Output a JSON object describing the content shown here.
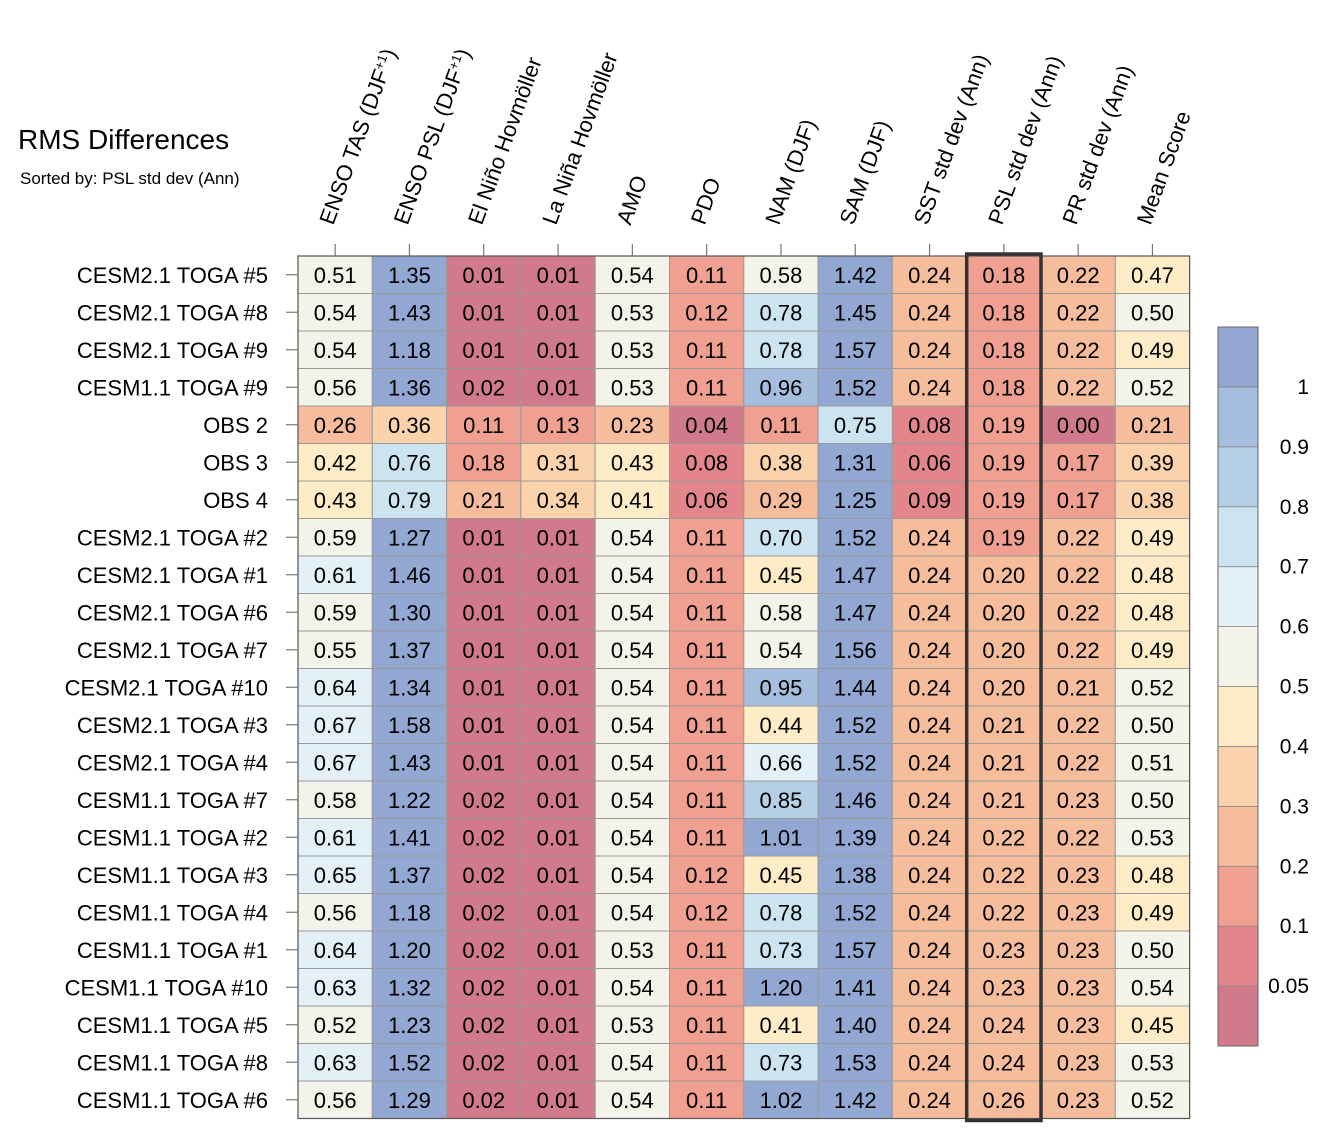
{
  "header": {
    "title": "RMS Differences",
    "subtitle": "Sorted by: PSL std dev (Ann)"
  },
  "chart_data": {
    "type": "heatmap",
    "title": "RMS Differences",
    "subtitle": "Sorted by: PSL std dev (Ann)",
    "sorted_by": "PSL std dev (Ann)",
    "highlighted_column": "PSL std dev (Ann)",
    "columns": [
      {
        "pre": "ENSO TAS (DJF",
        "sup": "+1",
        "post": ")"
      },
      {
        "pre": "ENSO PSL (DJF",
        "sup": "+1",
        "post": ")"
      },
      {
        "pre": "El Niño Hovmöller",
        "sup": "",
        "post": ""
      },
      {
        "pre": "La Niña Hovmöller",
        "sup": "",
        "post": ""
      },
      {
        "pre": "AMO",
        "sup": "",
        "post": ""
      },
      {
        "pre": "PDO",
        "sup": "",
        "post": ""
      },
      {
        "pre": "NAM (DJF)",
        "sup": "",
        "post": ""
      },
      {
        "pre": "SAM (DJF)",
        "sup": "",
        "post": ""
      },
      {
        "pre": "SST std dev (Ann)",
        "sup": "",
        "post": ""
      },
      {
        "pre": "PSL std dev (Ann)",
        "sup": "",
        "post": ""
      },
      {
        "pre": "PR std dev (Ann)",
        "sup": "",
        "post": ""
      },
      {
        "pre": "Mean Score",
        "sup": "",
        "post": ""
      }
    ],
    "rows": [
      "CESM2.1 TOGA #5",
      "CESM2.1 TOGA #8",
      "CESM2.1 TOGA #9",
      "CESM1.1 TOGA #9",
      "OBS 2",
      "OBS 3",
      "OBS 4",
      "CESM2.1 TOGA #2",
      "CESM2.1 TOGA #1",
      "CESM2.1 TOGA #6",
      "CESM2.1 TOGA #7",
      "CESM2.1 TOGA #10",
      "CESM2.1 TOGA #3",
      "CESM2.1 TOGA #4",
      "CESM1.1 TOGA #7",
      "CESM1.1 TOGA #2",
      "CESM1.1 TOGA #3",
      "CESM1.1 TOGA #4",
      "CESM1.1 TOGA #1",
      "CESM1.1 TOGA #10",
      "CESM1.1 TOGA #5",
      "CESM1.1 TOGA #8",
      "CESM1.1 TOGA #6"
    ],
    "values": [
      [
        "0.51",
        "1.35",
        "0.01",
        "0.01",
        "0.54",
        "0.11",
        "0.58",
        "1.42",
        "0.24",
        "0.18",
        "0.22",
        "0.47"
      ],
      [
        "0.54",
        "1.43",
        "0.01",
        "0.01",
        "0.53",
        "0.12",
        "0.78",
        "1.45",
        "0.24",
        "0.18",
        "0.22",
        "0.50"
      ],
      [
        "0.54",
        "1.18",
        "0.01",
        "0.01",
        "0.53",
        "0.11",
        "0.78",
        "1.57",
        "0.24",
        "0.18",
        "0.22",
        "0.49"
      ],
      [
        "0.56",
        "1.36",
        "0.02",
        "0.01",
        "0.53",
        "0.11",
        "0.96",
        "1.52",
        "0.24",
        "0.18",
        "0.22",
        "0.52"
      ],
      [
        "0.26",
        "0.36",
        "0.11",
        "0.13",
        "0.23",
        "0.04",
        "0.11",
        "0.75",
        "0.08",
        "0.19",
        "0.00",
        "0.21"
      ],
      [
        "0.42",
        "0.76",
        "0.18",
        "0.31",
        "0.43",
        "0.08",
        "0.38",
        "1.31",
        "0.06",
        "0.19",
        "0.17",
        "0.39"
      ],
      [
        "0.43",
        "0.79",
        "0.21",
        "0.34",
        "0.41",
        "0.06",
        "0.29",
        "1.25",
        "0.09",
        "0.19",
        "0.17",
        "0.38"
      ],
      [
        "0.59",
        "1.27",
        "0.01",
        "0.01",
        "0.54",
        "0.11",
        "0.70",
        "1.52",
        "0.24",
        "0.19",
        "0.22",
        "0.49"
      ],
      [
        "0.61",
        "1.46",
        "0.01",
        "0.01",
        "0.54",
        "0.11",
        "0.45",
        "1.47",
        "0.24",
        "0.20",
        "0.22",
        "0.48"
      ],
      [
        "0.59",
        "1.30",
        "0.01",
        "0.01",
        "0.54",
        "0.11",
        "0.58",
        "1.47",
        "0.24",
        "0.20",
        "0.22",
        "0.48"
      ],
      [
        "0.55",
        "1.37",
        "0.01",
        "0.01",
        "0.54",
        "0.11",
        "0.54",
        "1.56",
        "0.24",
        "0.20",
        "0.22",
        "0.49"
      ],
      [
        "0.64",
        "1.34",
        "0.01",
        "0.01",
        "0.54",
        "0.11",
        "0.95",
        "1.44",
        "0.24",
        "0.20",
        "0.21",
        "0.52"
      ],
      [
        "0.67",
        "1.58",
        "0.01",
        "0.01",
        "0.54",
        "0.11",
        "0.44",
        "1.52",
        "0.24",
        "0.21",
        "0.22",
        "0.50"
      ],
      [
        "0.67",
        "1.43",
        "0.01",
        "0.01",
        "0.54",
        "0.11",
        "0.66",
        "1.52",
        "0.24",
        "0.21",
        "0.22",
        "0.51"
      ],
      [
        "0.58",
        "1.22",
        "0.02",
        "0.01",
        "0.54",
        "0.11",
        "0.85",
        "1.46",
        "0.24",
        "0.21",
        "0.23",
        "0.50"
      ],
      [
        "0.61",
        "1.41",
        "0.02",
        "0.01",
        "0.54",
        "0.11",
        "1.01",
        "1.39",
        "0.24",
        "0.22",
        "0.22",
        "0.53"
      ],
      [
        "0.65",
        "1.37",
        "0.02",
        "0.01",
        "0.54",
        "0.12",
        "0.45",
        "1.38",
        "0.24",
        "0.22",
        "0.23",
        "0.48"
      ],
      [
        "0.56",
        "1.18",
        "0.02",
        "0.01",
        "0.54",
        "0.12",
        "0.78",
        "1.52",
        "0.24",
        "0.22",
        "0.23",
        "0.49"
      ],
      [
        "0.64",
        "1.20",
        "0.02",
        "0.01",
        "0.53",
        "0.11",
        "0.73",
        "1.57",
        "0.24",
        "0.23",
        "0.23",
        "0.50"
      ],
      [
        "0.63",
        "1.32",
        "0.02",
        "0.01",
        "0.54",
        "0.11",
        "1.20",
        "1.41",
        "0.24",
        "0.23",
        "0.23",
        "0.54"
      ],
      [
        "0.52",
        "1.23",
        "0.02",
        "0.01",
        "0.53",
        "0.11",
        "0.41",
        "1.40",
        "0.24",
        "0.24",
        "0.23",
        "0.45"
      ],
      [
        "0.63",
        "1.52",
        "0.02",
        "0.01",
        "0.54",
        "0.11",
        "0.73",
        "1.53",
        "0.24",
        "0.24",
        "0.23",
        "0.53"
      ],
      [
        "0.56",
        "1.29",
        "0.02",
        "0.01",
        "0.54",
        "0.11",
        "1.02",
        "1.42",
        "0.24",
        "0.26",
        "0.23",
        "0.52"
      ]
    ],
    "colorbar": {
      "thresholds": [
        0.05,
        0.1,
        0.2,
        0.3,
        0.4,
        0.5,
        0.6,
        0.7,
        0.8,
        0.9,
        1
      ],
      "labels": [
        "0.05",
        "0.1",
        "0.2",
        "0.3",
        "0.4",
        "0.5",
        "0.6",
        "0.7",
        "0.8",
        "0.9",
        "1"
      ],
      "colors": [
        "#d07a8c",
        "#e3868b",
        "#f0a090",
        "#f6bd9d",
        "#fad3ac",
        "#fdecc6",
        "#f4f3e9",
        "#e3f0f5",
        "#cce4ef",
        "#b5d0e4",
        "#a5bedd",
        "#92a7d2"
      ]
    }
  }
}
